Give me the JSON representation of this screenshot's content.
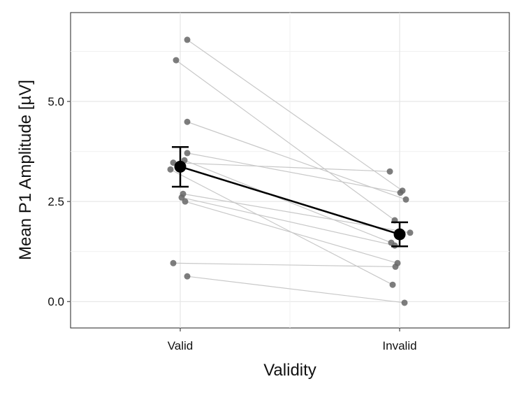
{
  "chart_data": {
    "type": "scatter",
    "xlabel": "Validity",
    "ylabel": "Mean P1 Amplitude [µV]",
    "categories": [
      "Valid",
      "Invalid"
    ],
    "ylim": [
      -0.66,
      7.22
    ],
    "yticks": [
      0.0,
      2.5,
      5.0
    ],
    "ytick_labels": [
      "0.0",
      "2.5",
      "5.0"
    ],
    "grid": true,
    "subjects": [
      {
        "valid": 6.54,
        "invalid": 2.77
      },
      {
        "valid": 6.03,
        "invalid": 2.03
      },
      {
        "valid": 4.49,
        "invalid": 2.55
      },
      {
        "valid": 3.71,
        "invalid": 2.72
      },
      {
        "valid": 3.53,
        "invalid": 1.47
      },
      {
        "valid": 3.47,
        "invalid": 3.25
      },
      {
        "valid": 3.3,
        "invalid": 0.42
      },
      {
        "valid": 2.69,
        "invalid": 1.72
      },
      {
        "valid": 2.6,
        "invalid": 1.4
      },
      {
        "valid": 2.5,
        "invalid": 0.96
      },
      {
        "valid": 0.96,
        "invalid": 0.87
      },
      {
        "valid": 0.63,
        "invalid": -0.03
      }
    ],
    "mean": {
      "values": [
        3.37,
        1.68
      ],
      "error_low": [
        2.87,
        1.38
      ],
      "error_high": [
        3.86,
        1.98
      ]
    },
    "colors": {
      "points": "#666666",
      "lines": "#c8c8c8",
      "mean": "#000000"
    }
  }
}
